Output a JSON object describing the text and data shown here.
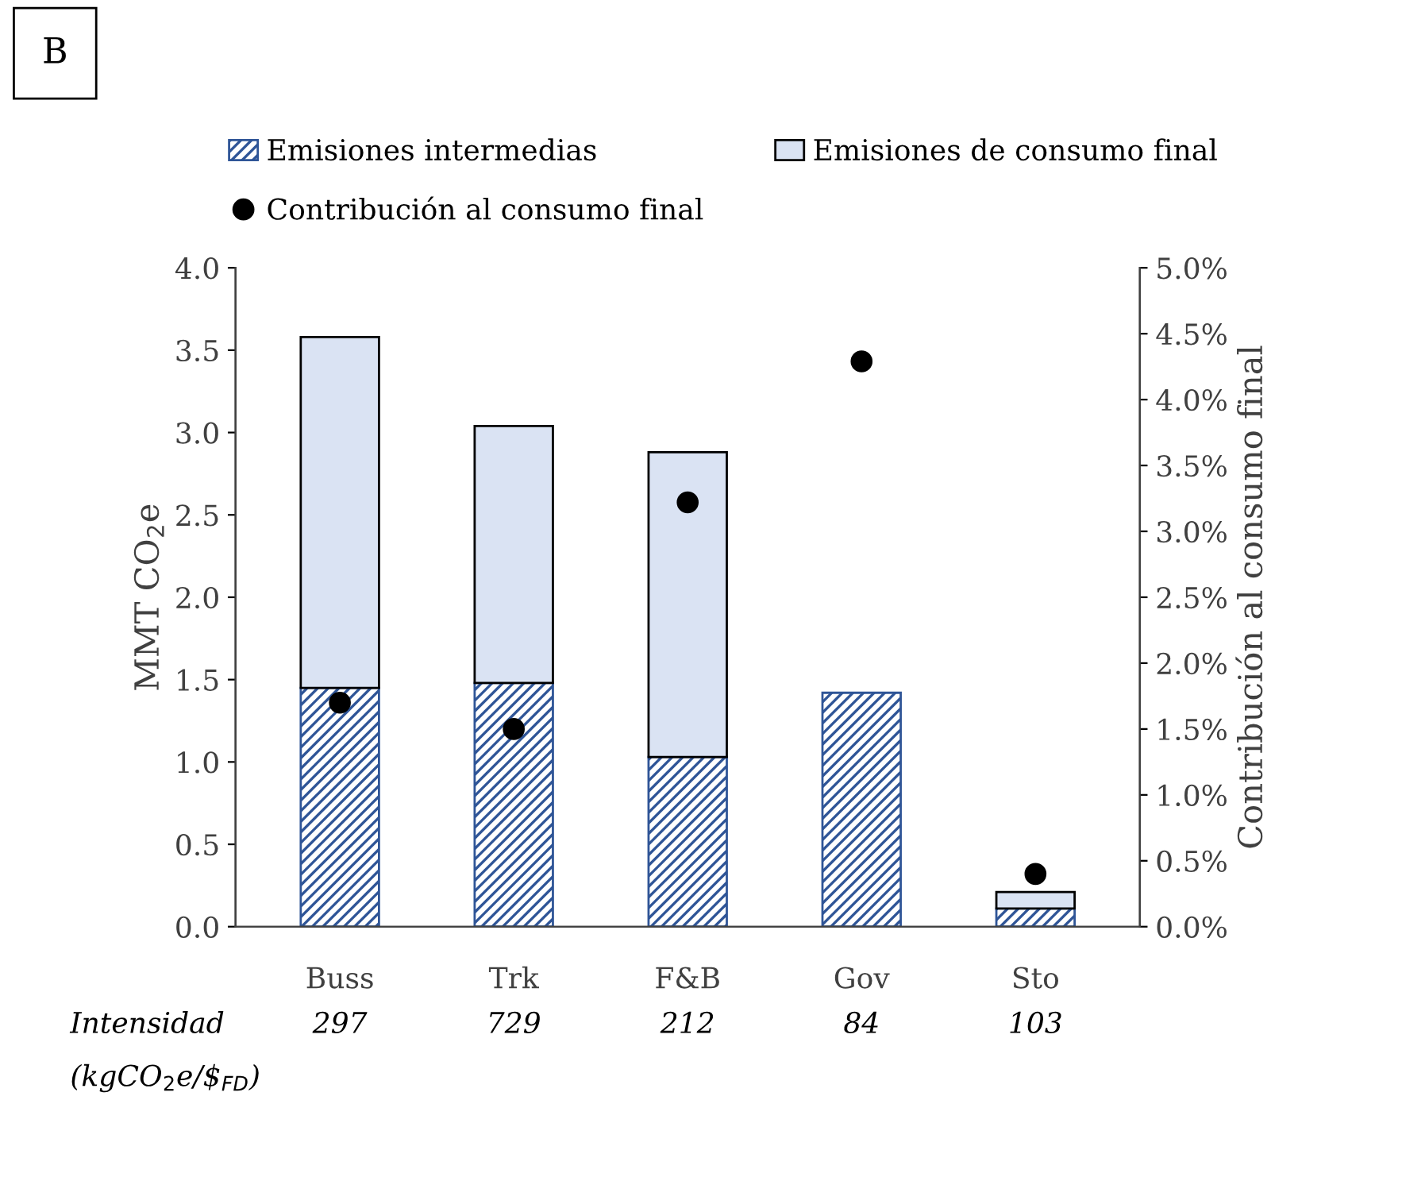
{
  "chart_data": {
    "type": "bar",
    "stacked": true,
    "title": "B",
    "categories": [
      "Buss",
      "Trk",
      "F&B",
      "Gov",
      "Sto"
    ],
    "series": [
      {
        "name": "Emisiones intermedias",
        "color": "#2f5597",
        "values": [
          1.45,
          1.48,
          1.03,
          1.42,
          0.11
        ]
      },
      {
        "name": "Emisiones de consumo final",
        "color": "#dae3f3",
        "values": [
          2.13,
          1.56,
          1.85,
          null,
          0.1
        ]
      },
      {
        "name": "Contribución al consumo final",
        "type": "scatter",
        "axis": "y2",
        "color": "#000000",
        "marker": "circle",
        "values": [
          1.7,
          1.5,
          3.22,
          4.29,
          0.4
        ]
      }
    ],
    "ylabel": "MMT CO$_{2}$e",
    "y2label": "Contribución al consumo final",
    "ylim": [
      0,
      4.0
    ],
    "yticks": [
      {
        "value": 0,
        "label": "0.0"
      },
      {
        "value": 0.5,
        "label": "0.5"
      },
      {
        "value": 1,
        "label": "1.0"
      },
      {
        "value": 1.5,
        "label": "1.5"
      },
      {
        "value": 2,
        "label": "2.0"
      },
      {
        "value": 2.5,
        "label": "2.5"
      },
      {
        "value": 3,
        "label": "3.0"
      },
      {
        "value": 3.5,
        "label": "3.5"
      },
      {
        "value": 4,
        "label": "4.0"
      }
    ],
    "y2lim": [
      0,
      5.0
    ],
    "y2ticks": [
      {
        "value": 0,
        "label": "0.0%"
      },
      {
        "value": 0.5,
        "label": "0.5%"
      },
      {
        "value": 1,
        "label": "1.0%"
      },
      {
        "value": 1.5,
        "label": "1.5%"
      },
      {
        "value": 2,
        "label": "2.0%"
      },
      {
        "value": 2.5,
        "label": "2.5%"
      },
      {
        "value": 3,
        "label": "3.0%"
      },
      {
        "value": 3.5,
        "label": "3.5%"
      },
      {
        "value": 4,
        "label": "4.0%"
      },
      {
        "value": 4.5,
        "label": "4.5%"
      },
      {
        "value": 5,
        "label": "5.0%"
      }
    ],
    "annotations": [
      "Intensidad",
      "(kgCO$_{2}$e/$$_{FD}$)",
      "297",
      "729",
      "212",
      "84",
      "103"
    ],
    "legend": "top",
    "grid": false
  }
}
